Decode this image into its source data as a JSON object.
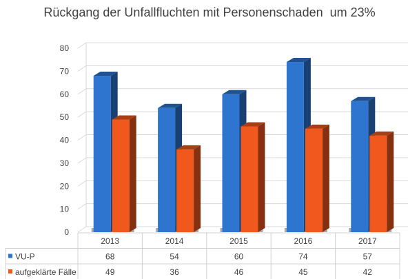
{
  "chart_data": {
    "type": "bar",
    "title": "Rückgang der Unfallfluchten mit Personenschaden  um 23%",
    "categories": [
      "2013",
      "2014",
      "2015",
      "2016",
      "2017"
    ],
    "series": [
      {
        "name": "VU-P",
        "values": [
          68,
          54,
          60,
          74,
          57
        ],
        "color": "#2E75D0"
      },
      {
        "name": "aufgeklärte Fälle",
        "values": [
          49,
          36,
          46,
          45,
          42
        ],
        "color": "#F0581E"
      }
    ],
    "ylim": [
      0,
      80
    ],
    "yticks": [
      0,
      10,
      20,
      30,
      40,
      50,
      60,
      70,
      80
    ],
    "grid": true,
    "style": "3d-column",
    "legend": "data-table"
  }
}
